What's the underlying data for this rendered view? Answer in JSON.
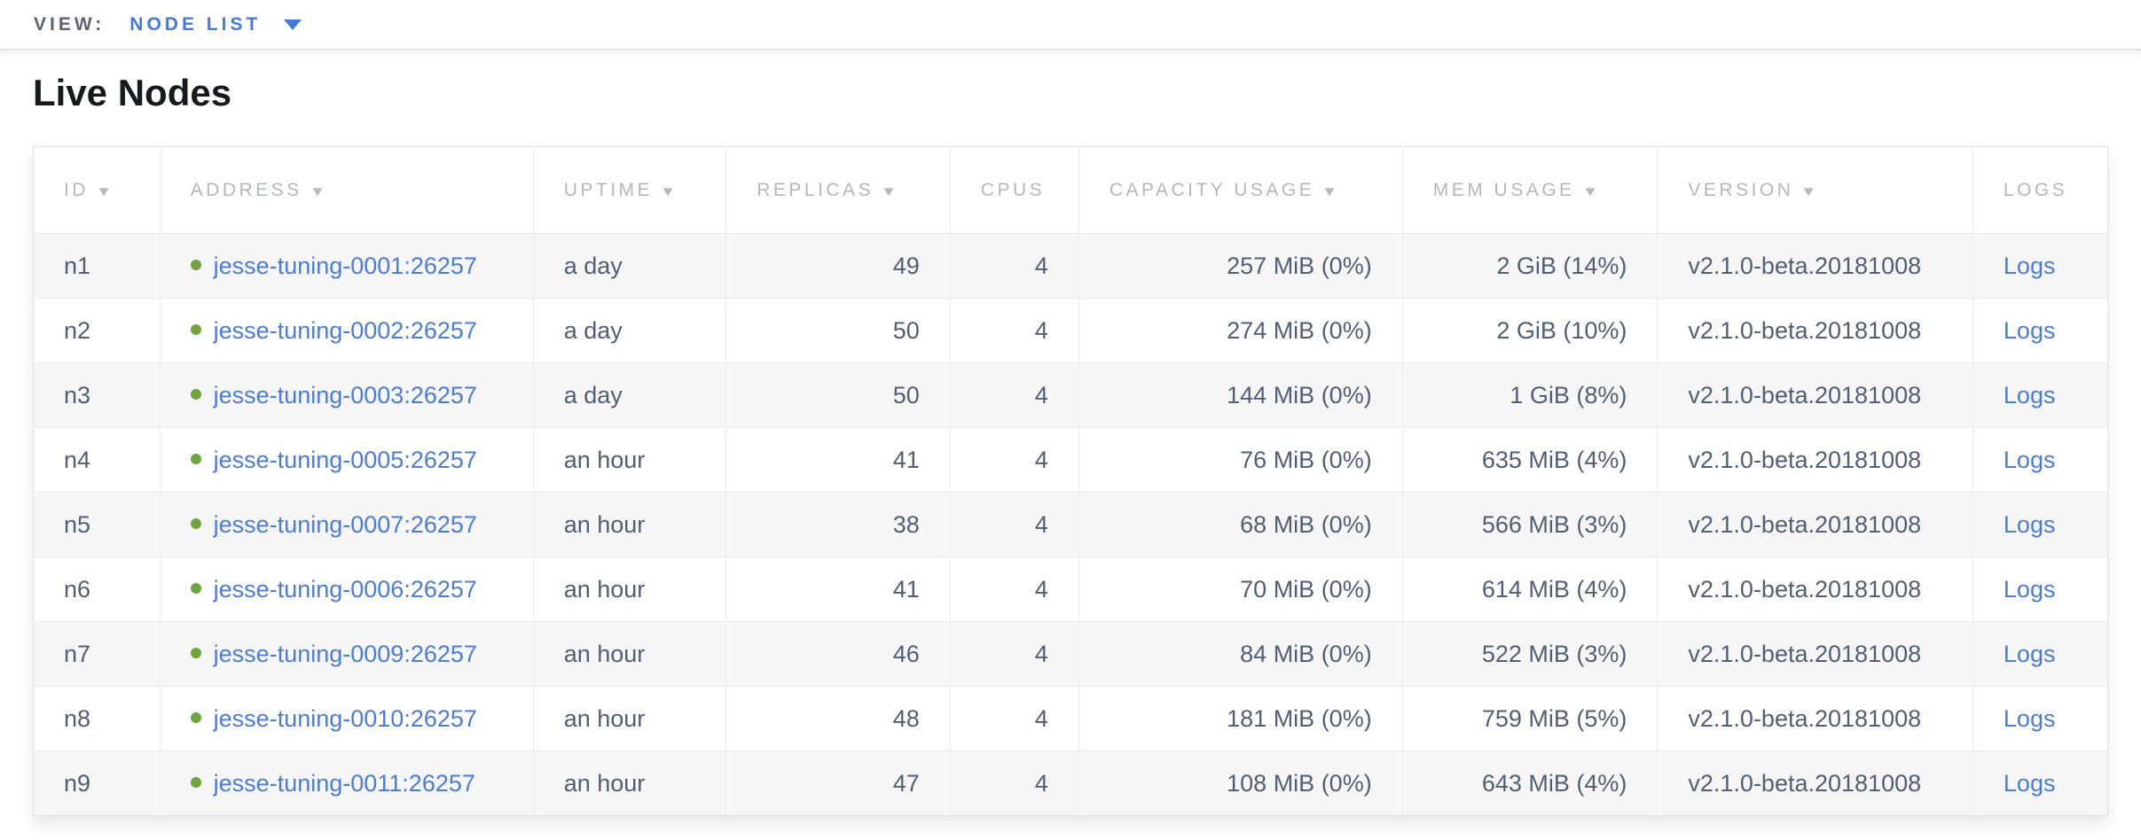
{
  "view_bar": {
    "label": "VIEW:",
    "selected": "NODE LIST"
  },
  "page_title": "Live Nodes",
  "table": {
    "columns": [
      {
        "key": "id",
        "label": "ID",
        "sortable": true,
        "align": "left"
      },
      {
        "key": "address",
        "label": "ADDRESS",
        "sortable": true,
        "align": "left"
      },
      {
        "key": "uptime",
        "label": "UPTIME",
        "sortable": true,
        "align": "left"
      },
      {
        "key": "replicas",
        "label": "REPLICAS",
        "sortable": true,
        "align": "right"
      },
      {
        "key": "cpus",
        "label": "CPUS",
        "sortable": false,
        "align": "right"
      },
      {
        "key": "capacity_usage",
        "label": "CAPACITY USAGE",
        "sortable": true,
        "align": "right"
      },
      {
        "key": "mem_usage",
        "label": "MEM USAGE",
        "sortable": true,
        "align": "right"
      },
      {
        "key": "version",
        "label": "VERSION",
        "sortable": true,
        "align": "left"
      },
      {
        "key": "logs",
        "label": "LOGS",
        "sortable": false,
        "align": "left"
      }
    ],
    "rows": [
      {
        "id": "n1",
        "address": "jesse-tuning-0001:26257",
        "status": "live",
        "uptime": "a day",
        "replicas": "49",
        "cpus": "4",
        "capacity_usage": "257 MiB (0%)",
        "mem_usage": "2 GiB (14%)",
        "version": "v2.1.0-beta.20181008",
        "logs": "Logs"
      },
      {
        "id": "n2",
        "address": "jesse-tuning-0002:26257",
        "status": "live",
        "uptime": "a day",
        "replicas": "50",
        "cpus": "4",
        "capacity_usage": "274 MiB (0%)",
        "mem_usage": "2 GiB (10%)",
        "version": "v2.1.0-beta.20181008",
        "logs": "Logs"
      },
      {
        "id": "n3",
        "address": "jesse-tuning-0003:26257",
        "status": "live",
        "uptime": "a day",
        "replicas": "50",
        "cpus": "4",
        "capacity_usage": "144 MiB (0%)",
        "mem_usage": "1 GiB (8%)",
        "version": "v2.1.0-beta.20181008",
        "logs": "Logs"
      },
      {
        "id": "n4",
        "address": "jesse-tuning-0005:26257",
        "status": "live",
        "uptime": "an hour",
        "replicas": "41",
        "cpus": "4",
        "capacity_usage": "76 MiB (0%)",
        "mem_usage": "635 MiB (4%)",
        "version": "v2.1.0-beta.20181008",
        "logs": "Logs"
      },
      {
        "id": "n5",
        "address": "jesse-tuning-0007:26257",
        "status": "live",
        "uptime": "an hour",
        "replicas": "38",
        "cpus": "4",
        "capacity_usage": "68 MiB (0%)",
        "mem_usage": "566 MiB (3%)",
        "version": "v2.1.0-beta.20181008",
        "logs": "Logs"
      },
      {
        "id": "n6",
        "address": "jesse-tuning-0006:26257",
        "status": "live",
        "uptime": "an hour",
        "replicas": "41",
        "cpus": "4",
        "capacity_usage": "70 MiB (0%)",
        "mem_usage": "614 MiB (4%)",
        "version": "v2.1.0-beta.20181008",
        "logs": "Logs"
      },
      {
        "id": "n7",
        "address": "jesse-tuning-0009:26257",
        "status": "live",
        "uptime": "an hour",
        "replicas": "46",
        "cpus": "4",
        "capacity_usage": "84 MiB (0%)",
        "mem_usage": "522 MiB (3%)",
        "version": "v2.1.0-beta.20181008",
        "logs": "Logs"
      },
      {
        "id": "n8",
        "address": "jesse-tuning-0010:26257",
        "status": "live",
        "uptime": "an hour",
        "replicas": "48",
        "cpus": "4",
        "capacity_usage": "181 MiB (0%)",
        "mem_usage": "759 MiB (5%)",
        "version": "v2.1.0-beta.20181008",
        "logs": "Logs"
      },
      {
        "id": "n9",
        "address": "jesse-tuning-0011:26257",
        "status": "live",
        "uptime": "an hour",
        "replicas": "47",
        "cpus": "4",
        "capacity_usage": "108 MiB (0%)",
        "mem_usage": "643 MiB (4%)",
        "version": "v2.1.0-beta.20181008",
        "logs": "Logs"
      }
    ],
    "column_widths_pct": [
      6.1,
      18.0,
      9.3,
      10.8,
      6.2,
      15.6,
      12.3,
      15.2,
      6.5
    ]
  },
  "icons": {
    "sort_arrow": "▼",
    "dropdown_caret": "caret-down",
    "live_status_dot": "●"
  },
  "colors": {
    "link_blue": "#4a7ce0",
    "dropdown_blue": "#4579e2",
    "live_dot_green": "#6fa53c",
    "header_text_gray": "#b5b7ba",
    "cell_text_slate": "#525e74",
    "zebra_row_gray": "#f6f6f7",
    "border_gray": "#ececec"
  }
}
